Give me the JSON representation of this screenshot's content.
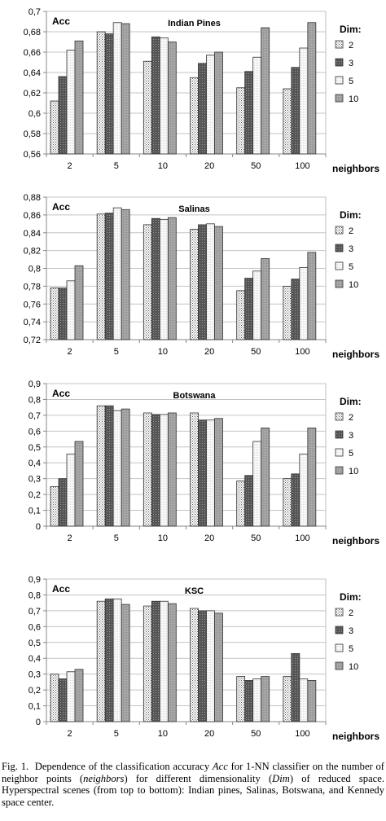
{
  "legend_title": "Dim:",
  "acc_label": "Acc",
  "x_axis_label": "neighbors",
  "series_colors": [
    "#e4e4e4",
    "#6e6e6e",
    "#f7f7f7",
    "#a8a8a8"
  ],
  "chart_data": [
    {
      "type": "bar",
      "title": "Indian Pines",
      "ylabel": "Acc",
      "xlabel": "neighbors",
      "categories": [
        "2",
        "5",
        "10",
        "20",
        "50",
        "100"
      ],
      "ylim": [
        0.56,
        0.7
      ],
      "yticks": [
        "0,56",
        "0,58",
        "0,6",
        "0,62",
        "0,64",
        "0,66",
        "0,68",
        "0,7"
      ],
      "legend_position": "right",
      "grid": true,
      "series": [
        {
          "name": "2",
          "values": [
            0.612,
            0.68,
            0.651,
            0.635,
            0.625,
            0.624
          ]
        },
        {
          "name": "3",
          "values": [
            0.636,
            0.678,
            0.675,
            0.649,
            0.641,
            0.645
          ]
        },
        {
          "name": "5",
          "values": [
            0.662,
            0.689,
            0.674,
            0.657,
            0.655,
            0.664
          ]
        },
        {
          "name": "10",
          "values": [
            0.671,
            0.688,
            0.67,
            0.66,
            0.684,
            0.689
          ]
        }
      ]
    },
    {
      "type": "bar",
      "title": "Salinas",
      "ylabel": "Acc",
      "xlabel": "neighbors",
      "categories": [
        "2",
        "5",
        "10",
        "20",
        "50",
        "100"
      ],
      "ylim": [
        0.72,
        0.88
      ],
      "yticks": [
        "0,72",
        "0,74",
        "0,76",
        "0,78",
        "0,8",
        "0,82",
        "0,84",
        "0,86",
        "0,88"
      ],
      "legend_position": "right",
      "grid": true,
      "series": [
        {
          "name": "2",
          "values": [
            0.778,
            0.861,
            0.849,
            0.844,
            0.775,
            0.78
          ]
        },
        {
          "name": "3",
          "values": [
            0.778,
            0.862,
            0.856,
            0.849,
            0.789,
            0.788
          ]
        },
        {
          "name": "5",
          "values": [
            0.786,
            0.868,
            0.855,
            0.85,
            0.797,
            0.801
          ]
        },
        {
          "name": "10",
          "values": [
            0.803,
            0.866,
            0.857,
            0.847,
            0.811,
            0.818
          ]
        }
      ]
    },
    {
      "type": "bar",
      "title": "Botswana",
      "ylabel": "Acc",
      "xlabel": "neighbors",
      "categories": [
        "2",
        "5",
        "10",
        "20",
        "50",
        "100"
      ],
      "ylim": [
        0,
        0.9
      ],
      "yticks": [
        "0",
        "0,1",
        "0,2",
        "0,3",
        "0,4",
        "0,5",
        "0,6",
        "0,7",
        "0,8",
        "0,9"
      ],
      "legend_position": "right",
      "grid": true,
      "series": [
        {
          "name": "2",
          "values": [
            0.25,
            0.76,
            0.715,
            0.715,
            0.285,
            0.3
          ]
        },
        {
          "name": "3",
          "values": [
            0.3,
            0.76,
            0.705,
            0.67,
            0.32,
            0.33
          ]
        },
        {
          "name": "5",
          "values": [
            0.455,
            0.73,
            0.705,
            0.67,
            0.535,
            0.455
          ]
        },
        {
          "name": "10",
          "values": [
            0.535,
            0.74,
            0.715,
            0.68,
            0.62,
            0.62
          ]
        }
      ]
    },
    {
      "type": "bar",
      "title": "KSC",
      "ylabel": "Acc",
      "xlabel": "neighbors",
      "categories": [
        "2",
        "5",
        "10",
        "20",
        "50",
        "100"
      ],
      "ylim": [
        0,
        0.9
      ],
      "yticks": [
        "0",
        "0,1",
        "0,2",
        "0,3",
        "0,4",
        "0,5",
        "0,6",
        "0,7",
        "0,8",
        "0,9"
      ],
      "legend_position": "right",
      "grid": true,
      "series": [
        {
          "name": "2",
          "values": [
            0.3,
            0.76,
            0.73,
            0.715,
            0.285,
            0.285
          ]
        },
        {
          "name": "3",
          "values": [
            0.27,
            0.775,
            0.76,
            0.7,
            0.26,
            0.43
          ]
        },
        {
          "name": "5",
          "values": [
            0.315,
            0.775,
            0.76,
            0.7,
            0.27,
            0.27
          ]
        },
        {
          "name": "10",
          "values": [
            0.33,
            0.74,
            0.745,
            0.685,
            0.285,
            0.26
          ]
        }
      ]
    }
  ],
  "caption": {
    "fig_label": "Fig. 1.",
    "part1": "Dependence of the classification accuracy ",
    "acc_word": "Acc",
    "part2": " for 1-NN classifier on the number of neighbor points (",
    "neighbors_word": "neighbors",
    "part3": ") for different dimensionality (",
    "dim_word": "Dim",
    "part4": ") of reduced space. Hyperspectral scenes (from top to bottom): Indian pines, Salinas, Botswana, and Kennedy space center."
  }
}
